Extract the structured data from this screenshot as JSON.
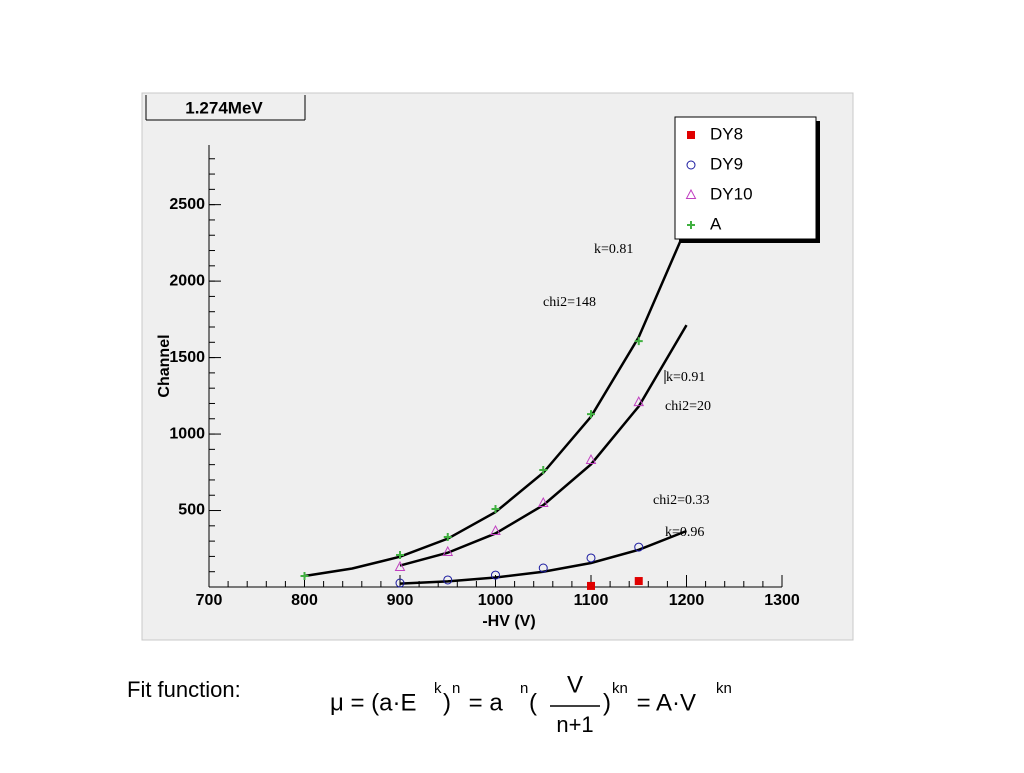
{
  "chart_data": {
    "type": "scatter",
    "title": "1.274MeV",
    "x_label": "-HV (V)",
    "y_label": "Channel",
    "xlim": [
      700,
      1300
    ],
    "ylim": [
      0,
      2890
    ],
    "xticks": [
      700,
      800,
      900,
      1000,
      1100,
      1200,
      1300
    ],
    "yticks": [
      500,
      1000,
      1500,
      2000,
      2500
    ],
    "legend": "top-right",
    "series": [
      {
        "name": "DY8",
        "color": "#e00000",
        "marker": "square",
        "x": [
          1100,
          1150
        ],
        "values": [
          7,
          39
        ]
      },
      {
        "name": "DY9",
        "color": "#1a1aa0",
        "marker": "circle",
        "x": [
          900,
          950,
          1000,
          1050,
          1100,
          1150
        ],
        "values": [
          26,
          46,
          78,
          124,
          190,
          261
        ]
      },
      {
        "name": "DY10",
        "color": "#c040c0",
        "marker": "triangle",
        "x": [
          900,
          950,
          1000,
          1050,
          1100,
          1150
        ],
        "values": [
          131,
          229,
          366,
          549,
          830,
          1209
        ]
      },
      {
        "name": "A",
        "color": "#40b040",
        "marker": "plus",
        "x": [
          800,
          900,
          950,
          1000,
          1050,
          1100,
          1150
        ],
        "values": [
          72,
          209,
          327,
          510,
          765,
          1130,
          1608
        ]
      }
    ],
    "fits": [
      {
        "color": "#000000",
        "x": [
          800,
          850,
          900,
          950,
          1000,
          1050,
          1100,
          1150,
          1200
        ],
        "values": [
          72,
          121,
          198,
          316,
          490,
          747,
          1114,
          1634,
          2354
        ]
      },
      {
        "color": "#000000",
        "x": [
          900,
          950,
          1000,
          1050,
          1100,
          1150,
          1200
        ],
        "values": [
          140,
          224,
          350,
          535,
          802,
          1181,
          1712
        ]
      },
      {
        "color": "#000000",
        "x": [
          900,
          950,
          1000,
          1050,
          1100,
          1150,
          1200
        ],
        "values": [
          22,
          37,
          62,
          100,
          157,
          243,
          366
        ]
      }
    ],
    "annotations": [
      "k=0.81",
      "chi2=148",
      "k=0.91",
      "chi2=20",
      "chi2=0.33",
      "k=0.96"
    ]
  },
  "footer": {
    "label": "Fit function:",
    "formula": [
      "μ = (a·E",
      "k",
      ")",
      "n",
      " = a",
      "n",
      "(",
      "V",
      "n+1",
      ")",
      "kn",
      " = A·V",
      "kn"
    ]
  }
}
